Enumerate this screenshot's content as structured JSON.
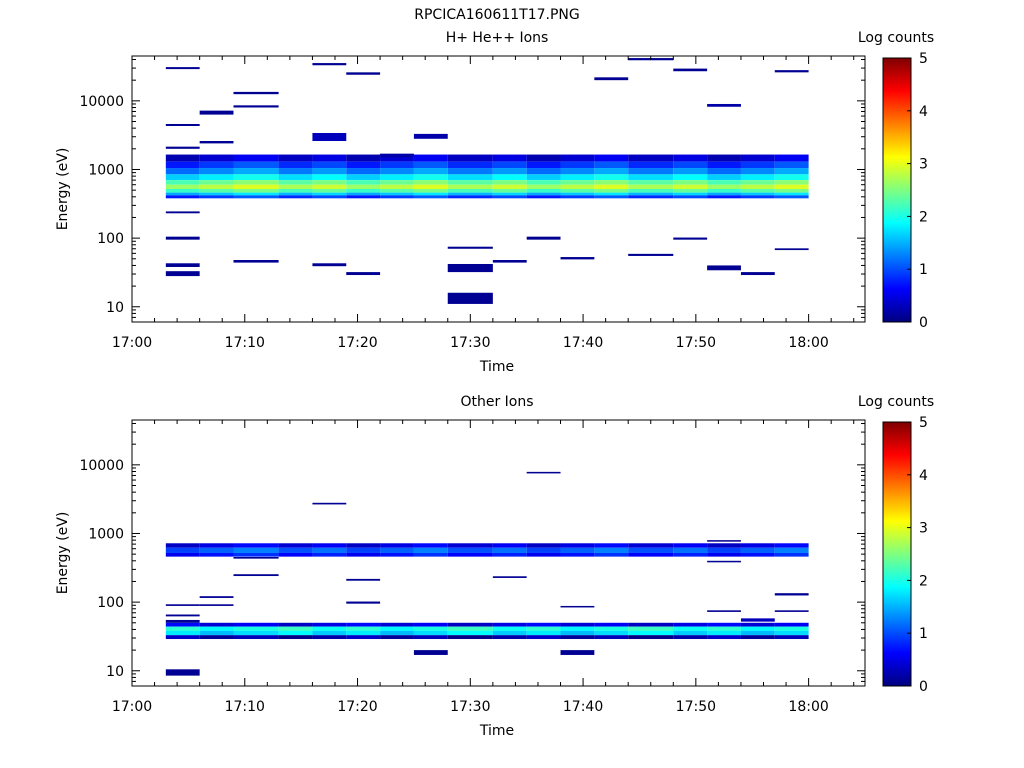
{
  "figure": {
    "title": "RPCICA160611T17.PNG"
  },
  "colors": {
    "colormap": [
      "#00007f",
      "#0000ff",
      "#007fff",
      "#00ffff",
      "#7fff7f",
      "#ffff00",
      "#ff7f00",
      "#ff0000",
      "#7f0000"
    ]
  },
  "chart_data": [
    {
      "type": "heatmap",
      "title": "H+ He++ Ions",
      "xlabel": "Time",
      "ylabel": "Energy (eV)",
      "xlim": [
        "17:00",
        "18:05"
      ],
      "ylim": [
        6,
        45000
      ],
      "yscale": "log",
      "x_ticks": [
        "17:00",
        "17:10",
        "17:20",
        "17:30",
        "17:40",
        "17:50",
        "18:00"
      ],
      "y_ticks": [
        10,
        100,
        1000,
        10000
      ],
      "y_tick_labels": [
        "10",
        "100",
        "1000",
        "10000"
      ],
      "colorbar": {
        "label": "Log counts",
        "range": [
          0,
          5
        ],
        "ticks": [
          "0",
          "1",
          "2",
          "3",
          "4",
          "5"
        ]
      },
      "time_bins": [
        "17:03",
        "17:06",
        "17:09",
        "17:13",
        "17:16",
        "17:19",
        "17:22",
        "17:25",
        "17:28",
        "17:32",
        "17:35",
        "17:38",
        "17:41",
        "17:44",
        "17:48",
        "17:51",
        "17:54",
        "17:57",
        "18:00"
      ],
      "core_bands": [
        {
          "emin": 1300,
          "emax": 1650,
          "log_counts": 0.4
        },
        {
          "emin": 1050,
          "emax": 1300,
          "log_counts": 0.9
        },
        {
          "emin": 850,
          "emax": 1050,
          "log_counts": 1.3
        },
        {
          "emin": 700,
          "emax": 850,
          "log_counts": 1.8
        },
        {
          "emin": 600,
          "emax": 700,
          "log_counts": 2.4
        },
        {
          "emin": 520,
          "emax": 600,
          "log_counts": 2.8
        },
        {
          "emin": 460,
          "emax": 520,
          "log_counts": 2.3
        },
        {
          "emin": 420,
          "emax": 460,
          "log_counts": 1.6
        },
        {
          "emin": 380,
          "emax": 420,
          "log_counts": 0.9
        }
      ],
      "sparse_bins": [
        {
          "t0": "17:03",
          "t1": "17:06",
          "emin": 28,
          "emax": 33,
          "log_counts": 0.1
        },
        {
          "t0": "17:03",
          "t1": "17:06",
          "emin": 38,
          "emax": 43,
          "log_counts": 0.1
        },
        {
          "t0": "17:03",
          "t1": "17:06",
          "emin": 95,
          "emax": 105,
          "log_counts": 0.1
        },
        {
          "t0": "17:03",
          "t1": "17:06",
          "emin": 230,
          "emax": 245,
          "log_counts": 0.1
        },
        {
          "t0": "17:03",
          "t1": "17:06",
          "emin": 2000,
          "emax": 2150,
          "log_counts": 0.1
        },
        {
          "t0": "17:03",
          "t1": "17:06",
          "emin": 4300,
          "emax": 4600,
          "log_counts": 0.1
        },
        {
          "t0": "17:03",
          "t1": "17:06",
          "emin": 29000,
          "emax": 31000,
          "log_counts": 0.1
        },
        {
          "t0": "17:06",
          "t1": "17:09",
          "emin": 6300,
          "emax": 7200,
          "log_counts": 0.1
        },
        {
          "t0": "17:06",
          "t1": "17:09",
          "emin": 2400,
          "emax": 2600,
          "log_counts": 0.1
        },
        {
          "t0": "17:09",
          "t1": "17:13",
          "emin": 44,
          "emax": 48,
          "log_counts": 0.1
        },
        {
          "t0": "17:09",
          "t1": "17:13",
          "emin": 8000,
          "emax": 8600,
          "log_counts": 0.1
        },
        {
          "t0": "17:09",
          "t1": "17:13",
          "emin": 12500,
          "emax": 13500,
          "log_counts": 0.1
        },
        {
          "t0": "17:16",
          "t1": "17:19",
          "emin": 39,
          "emax": 43,
          "log_counts": 0.1
        },
        {
          "t0": "17:16",
          "t1": "17:19",
          "emin": 2600,
          "emax": 3400,
          "log_counts": 0.3
        },
        {
          "t0": "17:16",
          "t1": "17:19",
          "emin": 33000,
          "emax": 35500,
          "log_counts": 0.1
        },
        {
          "t0": "17:19",
          "t1": "17:22",
          "emin": 29,
          "emax": 32,
          "log_counts": 0.1
        },
        {
          "t0": "17:19",
          "t1": "17:22",
          "emin": 24000,
          "emax": 26000,
          "log_counts": 0.1
        },
        {
          "t0": "17:22",
          "t1": "17:25",
          "emin": 1500,
          "emax": 1700,
          "log_counts": 0.2
        },
        {
          "t0": "17:25",
          "t1": "17:28",
          "emin": 2800,
          "emax": 3300,
          "log_counts": 0.2
        },
        {
          "t0": "17:28",
          "t1": "17:32",
          "emin": 11,
          "emax": 16,
          "log_counts": 0.1
        },
        {
          "t0": "17:28",
          "t1": "17:32",
          "emin": 32,
          "emax": 42,
          "log_counts": 0.1
        },
        {
          "t0": "17:28",
          "t1": "17:32",
          "emin": 70,
          "emax": 75,
          "log_counts": 0.1
        },
        {
          "t0": "17:32",
          "t1": "17:35",
          "emin": 44,
          "emax": 48,
          "log_counts": 0.1
        },
        {
          "t0": "17:35",
          "t1": "17:38",
          "emin": 95,
          "emax": 105,
          "log_counts": 0.1
        },
        {
          "t0": "17:38",
          "t1": "17:41",
          "emin": 49,
          "emax": 53,
          "log_counts": 0.1
        },
        {
          "t0": "17:41",
          "t1": "17:44",
          "emin": 20000,
          "emax": 22000,
          "log_counts": 0.1
        },
        {
          "t0": "17:44",
          "t1": "17:48",
          "emin": 55,
          "emax": 59,
          "log_counts": 0.1
        },
        {
          "t0": "17:44",
          "t1": "17:48",
          "emin": 39000,
          "emax": 42000,
          "log_counts": 0.1
        },
        {
          "t0": "17:48",
          "t1": "17:51",
          "emin": 95,
          "emax": 102,
          "log_counts": 0.1
        },
        {
          "t0": "17:48",
          "t1": "17:51",
          "emin": 27000,
          "emax": 29500,
          "log_counts": 0.1
        },
        {
          "t0": "17:51",
          "t1": "17:54",
          "emin": 34,
          "emax": 40,
          "log_counts": 0.1
        },
        {
          "t0": "17:51",
          "t1": "17:54",
          "emin": 8200,
          "emax": 9000,
          "log_counts": 0.2
        },
        {
          "t0": "17:54",
          "t1": "17:57",
          "emin": 29,
          "emax": 32,
          "log_counts": 0.1
        },
        {
          "t0": "17:57",
          "t1": "18:00",
          "emin": 67,
          "emax": 71,
          "log_counts": 0.1
        },
        {
          "t0": "17:57",
          "t1": "18:00",
          "emin": 26000,
          "emax": 28000,
          "log_counts": 0.1
        }
      ]
    },
    {
      "type": "heatmap",
      "title": "Other Ions",
      "xlabel": "Time",
      "ylabel": "Energy (eV)",
      "xlim": [
        "17:00",
        "18:05"
      ],
      "ylim": [
        6,
        45000
      ],
      "yscale": "log",
      "x_ticks": [
        "17:00",
        "17:10",
        "17:20",
        "17:30",
        "17:40",
        "17:50",
        "18:00"
      ],
      "y_ticks": [
        10,
        100,
        1000,
        10000
      ],
      "y_tick_labels": [
        "10",
        "100",
        "1000",
        "10000"
      ],
      "colorbar": {
        "label": "Log counts",
        "range": [
          0,
          5
        ],
        "ticks": [
          "0",
          "1",
          "2",
          "3",
          "4",
          "5"
        ]
      },
      "time_bins": [
        "17:03",
        "17:06",
        "17:09",
        "17:13",
        "17:16",
        "17:19",
        "17:22",
        "17:25",
        "17:28",
        "17:32",
        "17:35",
        "17:38",
        "17:41",
        "17:44",
        "17:48",
        "17:51",
        "17:54",
        "17:57",
        "18:00"
      ],
      "core_bands": [
        {
          "emin": 620,
          "emax": 720,
          "log_counts": 0.5
        },
        {
          "emin": 520,
          "emax": 620,
          "log_counts": 1.1
        },
        {
          "emin": 460,
          "emax": 520,
          "log_counts": 0.7
        },
        {
          "emin": 44,
          "emax": 50,
          "log_counts": 0.5
        },
        {
          "emin": 38,
          "emax": 44,
          "log_counts": 2.0
        },
        {
          "emin": 33,
          "emax": 38,
          "log_counts": 1.7
        },
        {
          "emin": 29,
          "emax": 33,
          "log_counts": 0.2
        }
      ],
      "sparse_bins": [
        {
          "t0": "17:03",
          "t1": "17:06",
          "emin": 8.5,
          "emax": 10.5,
          "log_counts": 0.1
        },
        {
          "t0": "17:03",
          "t1": "17:06",
          "emin": 50,
          "emax": 55,
          "log_counts": 0.1
        },
        {
          "t0": "17:03",
          "t1": "17:06",
          "emin": 62,
          "emax": 66,
          "log_counts": 0.1
        },
        {
          "t0": "17:03",
          "t1": "17:06",
          "emin": 88,
          "emax": 93,
          "log_counts": 0.1
        },
        {
          "t0": "17:06",
          "t1": "17:09",
          "emin": 88,
          "emax": 93,
          "log_counts": 0.1
        },
        {
          "t0": "17:06",
          "t1": "17:09",
          "emin": 115,
          "emax": 122,
          "log_counts": 0.1
        },
        {
          "t0": "17:09",
          "t1": "17:13",
          "emin": 240,
          "emax": 255,
          "log_counts": 0.1
        },
        {
          "t0": "17:09",
          "t1": "17:13",
          "emin": 430,
          "emax": 455,
          "log_counts": 0.1
        },
        {
          "t0": "17:16",
          "t1": "17:19",
          "emin": 2650,
          "emax": 2800,
          "log_counts": 0.1
        },
        {
          "t0": "17:19",
          "t1": "17:22",
          "emin": 95,
          "emax": 102,
          "log_counts": 0.1
        },
        {
          "t0": "17:19",
          "t1": "17:22",
          "emin": 205,
          "emax": 218,
          "log_counts": 0.1
        },
        {
          "t0": "17:25",
          "t1": "17:28",
          "emin": 17,
          "emax": 20,
          "log_counts": 0.1
        },
        {
          "t0": "17:32",
          "t1": "17:35",
          "emin": 225,
          "emax": 238,
          "log_counts": 0.1
        },
        {
          "t0": "17:35",
          "t1": "17:38",
          "emin": 7500,
          "emax": 7900,
          "log_counts": 0.1
        },
        {
          "t0": "17:38",
          "t1": "17:41",
          "emin": 17,
          "emax": 20,
          "log_counts": 0.1
        },
        {
          "t0": "17:38",
          "t1": "17:41",
          "emin": 84,
          "emax": 88,
          "log_counts": 0.1
        },
        {
          "t0": "17:51",
          "t1": "17:54",
          "emin": 72,
          "emax": 76,
          "log_counts": 0.1
        },
        {
          "t0": "17:51",
          "t1": "17:54",
          "emin": 760,
          "emax": 800,
          "log_counts": 0.1
        },
        {
          "t0": "17:51",
          "t1": "17:54",
          "emin": 380,
          "emax": 400,
          "log_counts": 0.1
        },
        {
          "t0": "17:54",
          "t1": "17:57",
          "emin": 52,
          "emax": 58,
          "log_counts": 0.3
        },
        {
          "t0": "17:57",
          "t1": "18:00",
          "emin": 72,
          "emax": 76,
          "log_counts": 0.1
        },
        {
          "t0": "17:57",
          "t1": "18:00",
          "emin": 125,
          "emax": 135,
          "log_counts": 0.1
        }
      ]
    }
  ]
}
